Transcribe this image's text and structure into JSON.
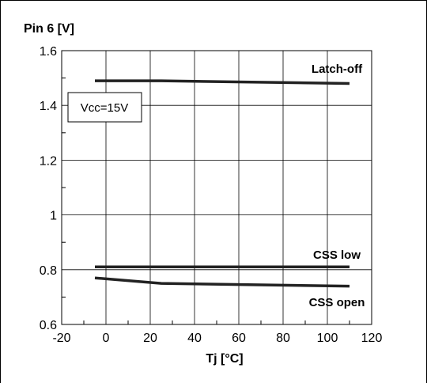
{
  "chart_data": {
    "type": "line",
    "ylabel": "Pin 6 [V]",
    "xlabel": "Tj [°C]",
    "xlim": [
      -20,
      120
    ],
    "ylim": [
      0.6,
      1.6
    ],
    "x_ticks": [
      -20,
      0,
      20,
      40,
      60,
      80,
      100,
      120
    ],
    "y_ticks": [
      0.6,
      0.8,
      1.0,
      1.2,
      1.4,
      1.6
    ],
    "x_tick_labels": [
      "-20",
      "0",
      "20",
      "40",
      "60",
      "80",
      "100",
      "120"
    ],
    "y_tick_labels": [
      "0.6",
      "0.8",
      "1",
      "1.2",
      "1.4",
      "1.6"
    ],
    "grid": true,
    "annotation": "Vcc=15V",
    "series": [
      {
        "name": "Latch-off",
        "x": [
          -5,
          25,
          110
        ],
        "y": [
          1.49,
          1.49,
          1.48
        ]
      },
      {
        "name": "CSS low",
        "x": [
          -5,
          110
        ],
        "y": [
          0.81,
          0.81
        ]
      },
      {
        "name": "CSS open",
        "x": [
          -5,
          25,
          110
        ],
        "y": [
          0.77,
          0.75,
          0.74
        ]
      }
    ]
  }
}
